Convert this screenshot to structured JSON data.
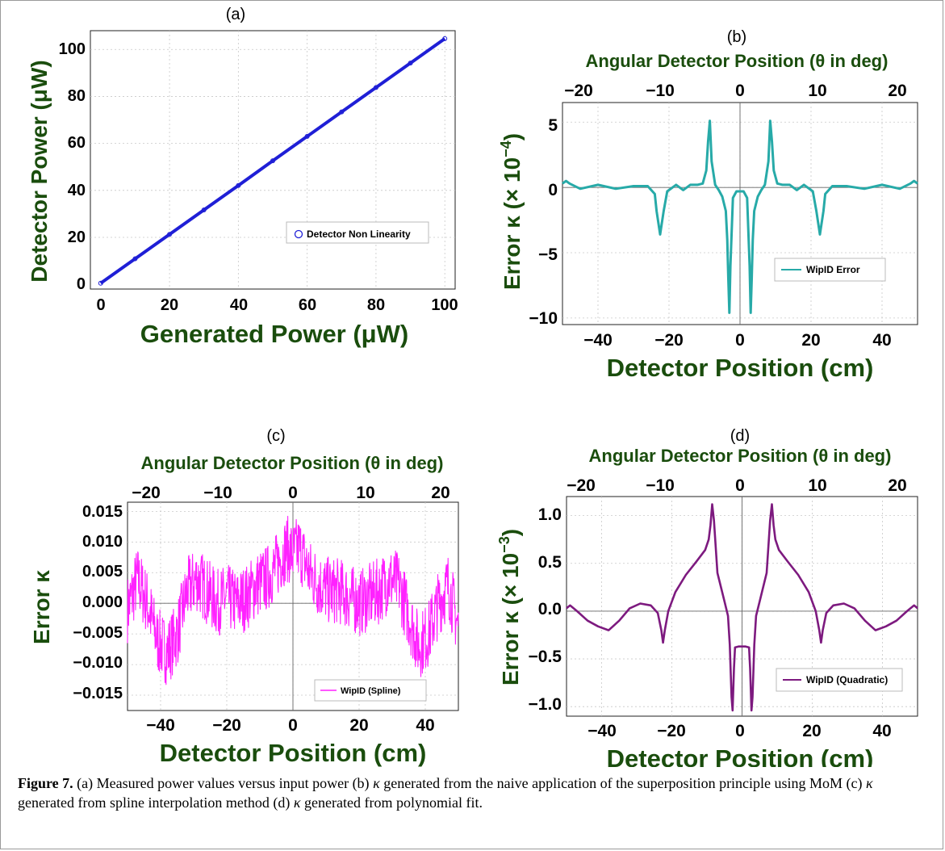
{
  "panels": [
    {
      "id": "a",
      "label": "(a)",
      "xlabel": "Generated Power (μW)",
      "ylabel": "Detector Power (μW)",
      "top_label": "",
      "legend": "Detector Non Linearity",
      "xticks": [
        "0",
        "20",
        "40",
        "60",
        "80",
        "100"
      ],
      "yticks": [
        "0",
        "20",
        "40",
        "60",
        "80",
        "100"
      ]
    },
    {
      "id": "b",
      "label": "(b)",
      "xlabel": "Detector Position (cm)",
      "ylabel": "Error κ (× 10",
      "ylabel_exp": "−4",
      "ylabel_close": ")",
      "top_label": "Angular Detector Position (θ in deg)",
      "legend": "WipID Error",
      "xticks": [
        "−40",
        "−20",
        "0",
        "20",
        "40"
      ],
      "yticks": [
        "5",
        "0",
        "−5",
        "−10"
      ],
      "top_ticks": [
        "−20",
        "−10",
        "0",
        "10",
        "20"
      ]
    },
    {
      "id": "c",
      "label": "(c)",
      "xlabel": "Detector Position (cm)",
      "ylabel": "Error κ",
      "top_label": "Angular Detector Position (θ in deg)",
      "legend": "WipID (Spline)",
      "xticks": [
        "−40",
        "−20",
        "0",
        "20",
        "40"
      ],
      "yticks": [
        "0.015",
        "0.010",
        "0.005",
        "0.000",
        "−0.005",
        "−0.010",
        "−0.015"
      ],
      "top_ticks": [
        "−20",
        "−10",
        "0",
        "10",
        "20"
      ]
    },
    {
      "id": "d",
      "label": "(d)",
      "xlabel": "Detector Position (cm)",
      "ylabel": "Error κ (× 10",
      "ylabel_exp": "−3",
      "ylabel_close": ")",
      "top_label": "Angular Detector Position (θ in deg)",
      "legend": "WipID (Quadratic)",
      "xticks": [
        "−40",
        "−20",
        "0",
        "20",
        "40"
      ],
      "yticks": [
        "1.0",
        "0.5",
        "0.0",
        "−0.5",
        "−1.0"
      ],
      "top_ticks": [
        "−20",
        "−10",
        "0",
        "10",
        "20"
      ]
    }
  ],
  "caption": {
    "lead": "Figure 7.",
    "p1": " (a) Measured power values versus input power (b) ",
    "k1": "κ",
    "p2": " generated from the naive application of the superposition principle using MoM (c) ",
    "k2": "κ",
    "p3": " generated from spline interpolation method (d) ",
    "k3": "κ",
    "p4": " generated from polynomial fit."
  },
  "colors": {
    "label_green": "#1a4d0d",
    "a_series": "#1f1fd6",
    "b_series": "#27aaa8",
    "c_series": "#ff21ff",
    "d_series": "#7d1a7f"
  },
  "chart_data": [
    {
      "panel": "a",
      "type": "scatter",
      "xlabel": "Generated Power (μW)",
      "ylabel": "Detector Power (μW)",
      "xlim": [
        0,
        100
      ],
      "ylim": [
        0,
        105
      ],
      "grid": true,
      "legend_position": "right",
      "series": [
        {
          "name": "Detector Non Linearity",
          "x": [
            0,
            10,
            20,
            30,
            40,
            50,
            60,
            70,
            80,
            90,
            100
          ],
          "y": [
            0.5,
            10.9,
            21.3,
            31.7,
            42.1,
            52.6,
            63.0,
            73.4,
            83.8,
            94.2,
            104.6
          ]
        }
      ]
    },
    {
      "panel": "b",
      "type": "line",
      "xlabel": "Detector Position (cm)",
      "ylabel": "Error κ (× 10⁻⁴)",
      "top_xlabel": "Angular Detector Position (θ in deg)",
      "xlim": [
        -50,
        50
      ],
      "ylim": [
        -10.5,
        6.5
      ],
      "grid": true,
      "legend_position": "bottom-right",
      "series": [
        {
          "name": "WipID Error",
          "x": [
            -50,
            -49,
            -48,
            -45,
            -40,
            -35,
            -30,
            -26,
            -24,
            -23.5,
            -22.5,
            -21.5,
            -20.5,
            -18,
            -16,
            -14,
            -12,
            -10.5,
            -9.5,
            -9,
            -8.5,
            -8,
            -7,
            -6,
            -5,
            -4,
            -3.6,
            -3.3,
            -3,
            -2.7,
            -2,
            -1,
            0,
            1,
            2,
            2.7,
            3,
            3.3,
            3.6,
            4,
            5,
            6,
            7,
            8,
            8.5,
            9,
            9.5,
            10.5,
            12,
            14,
            16,
            18,
            20.5,
            21.5,
            22.5,
            23.5,
            24,
            26,
            30,
            35,
            40,
            45,
            48,
            49,
            50
          ],
          "y": [
            0.3,
            0.5,
            0.3,
            -0.1,
            0.2,
            -0.1,
            0.1,
            0.1,
            -0.5,
            -1.8,
            -3.6,
            -1.8,
            -0.3,
            0.2,
            -0.2,
            0.2,
            0.2,
            0.3,
            1.3,
            3.5,
            5.1,
            2.0,
            0.2,
            -0.2,
            -0.7,
            -1.8,
            -4.0,
            -7.0,
            -9.6,
            -6.0,
            -0.8,
            -0.3,
            -0.3,
            -0.3,
            -0.8,
            -6.0,
            -9.6,
            -7.0,
            -4.0,
            -1.8,
            -0.7,
            -0.2,
            0.2,
            2.0,
            5.1,
            3.5,
            1.3,
            0.3,
            0.2,
            0.2,
            -0.2,
            0.2,
            -0.3,
            -1.8,
            -3.6,
            -1.8,
            -0.5,
            0.1,
            0.1,
            -0.1,
            0.2,
            -0.1,
            0.3,
            0.5,
            0.3
          ]
        }
      ]
    },
    {
      "panel": "c",
      "type": "line",
      "xlabel": "Detector Position (cm)",
      "ylabel": "Error κ",
      "top_xlabel": "Angular Detector Position (θ in deg)",
      "xlim": [
        -50,
        50
      ],
      "ylim": [
        -0.0175,
        0.0165
      ],
      "grid": true,
      "legend_position": "bottom-right",
      "note": "noisy trace; the listed points trace its slowly varying envelope",
      "series": [
        {
          "name": "WipID (Spline)",
          "x": [
            -50,
            -47,
            -44,
            -41,
            -38,
            -35,
            -32,
            -29,
            -26,
            -23,
            -20,
            -17,
            -14,
            -11,
            -8,
            -5,
            -2,
            0,
            2,
            5,
            8,
            11,
            14,
            17,
            20,
            23,
            26,
            29,
            32,
            35,
            38,
            41,
            44,
            47,
            50
          ],
          "y": [
            -0.001,
            0.004,
            0.0,
            -0.006,
            -0.008,
            -0.005,
            0.002,
            0.004,
            0.002,
            0.0,
            0.001,
            0.0,
            0.001,
            0.003,
            0.004,
            0.006,
            0.009,
            0.008,
            0.009,
            0.005,
            0.003,
            0.002,
            0.002,
            0.001,
            0.0,
            0.001,
            0.002,
            0.004,
            0.003,
            -0.002,
            -0.007,
            -0.005,
            0.0,
            0.003,
            -0.004
          ]
        }
      ]
    },
    {
      "panel": "d",
      "type": "line",
      "xlabel": "Detector Position (cm)",
      "ylabel": "Error κ (× 10⁻³)",
      "top_xlabel": "Angular Detector Position (θ in deg)",
      "xlim": [
        -50,
        50
      ],
      "ylim": [
        -1.1,
        1.2
      ],
      "grid": true,
      "legend_position": "bottom-right",
      "series": [
        {
          "name": "WipID (Quadratic)",
          "x": [
            -50,
            -49,
            -47,
            -44,
            -41,
            -38,
            -35,
            -32,
            -29,
            -26,
            -24,
            -23,
            -22.5,
            -22,
            -21,
            -19,
            -16,
            -13,
            -10.5,
            -9.5,
            -9,
            -8.5,
            -8,
            -7,
            -5,
            -4,
            -3.5,
            -3,
            -2.7,
            -2.3,
            -2,
            -1,
            0,
            1,
            2,
            2.3,
            2.7,
            3,
            3.5,
            4,
            5,
            7,
            8,
            8.5,
            9,
            9.5,
            10.5,
            13,
            16,
            19,
            21,
            22,
            22.5,
            23,
            24,
            26,
            29,
            32,
            35,
            38,
            41,
            44,
            47,
            49,
            50
          ],
          "y": [
            0.03,
            0.06,
            0.0,
            -0.1,
            -0.16,
            -0.2,
            -0.1,
            0.03,
            0.08,
            0.06,
            -0.02,
            -0.2,
            -0.33,
            -0.2,
            0.0,
            0.2,
            0.38,
            0.52,
            0.64,
            0.75,
            0.9,
            1.12,
            0.95,
            0.4,
            0.1,
            -0.05,
            -0.35,
            -0.9,
            -1.04,
            -0.6,
            -0.38,
            -0.37,
            -0.37,
            -0.37,
            -0.38,
            -0.6,
            -1.04,
            -0.9,
            -0.35,
            -0.05,
            0.1,
            0.4,
            0.95,
            1.12,
            0.9,
            0.75,
            0.64,
            0.52,
            0.38,
            0.2,
            0.0,
            -0.2,
            -0.33,
            -0.2,
            -0.02,
            0.06,
            0.08,
            0.03,
            -0.1,
            -0.2,
            -0.16,
            -0.1,
            0.0,
            0.06,
            0.03
          ]
        }
      ]
    }
  ]
}
